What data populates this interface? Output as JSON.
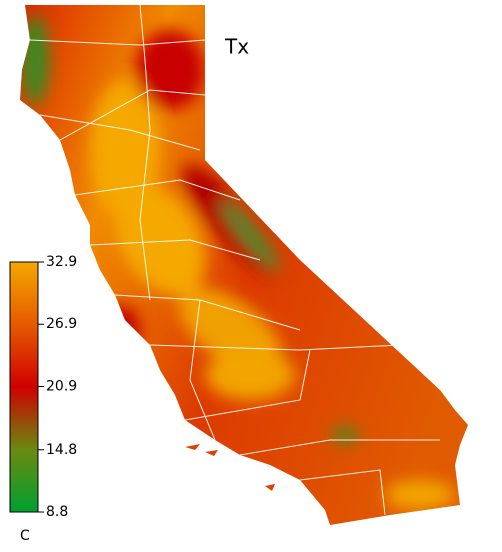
{
  "map": {
    "title": "Tx",
    "colorbar": {
      "unit": "C",
      "range": [
        8.8,
        32.9
      ],
      "ticks": [
        32.9,
        26.9,
        20.9,
        14.8,
        8.8
      ],
      "colors": [
        "#00a030",
        "#6a8a10",
        "#d00000",
        "#e65a00",
        "#f5a800"
      ]
    }
  }
}
